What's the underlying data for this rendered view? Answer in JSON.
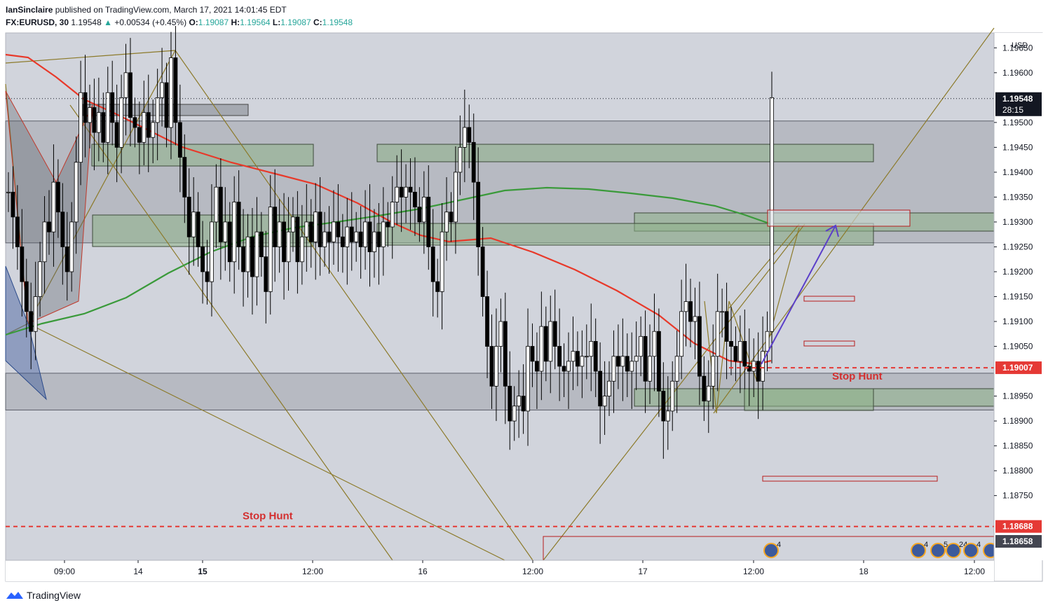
{
  "header": {
    "author": "IanSinclaire",
    "published_text": "published on TradingView.com, March 17, 2021 14:01:45 EDT",
    "symbol": "FX:EURUSD, 30",
    "last": "1.19548",
    "change": "+0.00534 (+0.45%)",
    "o_label": "O:",
    "o_value": "1.19087",
    "h_label": "H:",
    "h_value": "1.19564",
    "l_label": "L:",
    "l_value": "1.19087",
    "c_label": "C:",
    "c_value": "1.19548"
  },
  "footer": {
    "brand": "TradingView"
  },
  "colors": {
    "bull": "#ffffff",
    "bear": "#000000",
    "ema_red": "#e8392a",
    "ema_green": "#3a9a3a",
    "zone_grey": "#a9acb3",
    "zone_green": "#8fb38a",
    "pattern": "#8c7a2a",
    "stop": "#e53935",
    "arrow": "#5b3fc9"
  },
  "chart_data": {
    "type": "candlestick",
    "symbol": "FX:EURUSD",
    "timeframe": "30",
    "y_axis": {
      "currency": "USD",
      "range": [
        1.1862,
        1.1968
      ],
      "ticks": [
        "1.19650",
        "1.19600",
        "1.19500",
        "1.19450",
        "1.19400",
        "1.19350",
        "1.19300",
        "1.19250",
        "1.19200",
        "1.19150",
        "1.19100",
        "1.19050",
        "1.18950",
        "1.18900",
        "1.18850",
        "1.18800",
        "1.18750"
      ]
    },
    "x_axis": {
      "ticks": [
        {
          "label": "09:00",
          "bold": false
        },
        {
          "label": "14",
          "bold": false
        },
        {
          "label": "15",
          "bold": true
        },
        {
          "label": "12:00",
          "bold": false
        },
        {
          "label": "16",
          "bold": false
        },
        {
          "label": "12:00",
          "bold": false
        },
        {
          "label": "17",
          "bold": false
        },
        {
          "label": "12:00",
          "bold": false
        },
        {
          "label": "18",
          "bold": false
        },
        {
          "label": "12:00",
          "bold": false
        }
      ]
    },
    "price_labels": {
      "current": "1.19548",
      "countdown": "28:15",
      "stop_upper": "1.19007",
      "stop_lower": "1.18688",
      "bottom": "1.18658"
    },
    "annotations": [
      {
        "text": "Stop Hunt",
        "price": 1.19007
      },
      {
        "text": "Stop Hunt",
        "price": 1.18688
      }
    ],
    "event_badges": [
      "4",
      "4",
      "5",
      "24",
      "4"
    ],
    "grey_zones": [
      [
        1.19258,
        1.19503
      ],
      [
        1.18922,
        1.18996
      ]
    ],
    "green_zones": [
      [
        1.19444,
        1.19478
      ],
      [
        1.19268,
        1.19312
      ],
      [
        1.19297,
        1.19333
      ],
      [
        1.1893,
        1.18963
      ]
    ],
    "closes": [
      1.1936,
      1.1931,
      1.1925,
      1.1918,
      1.1912,
      1.1908,
      1.1915,
      1.1922,
      1.193,
      1.1928,
      1.1938,
      1.1932,
      1.1925,
      1.192,
      1.193,
      1.1942,
      1.1956,
      1.195,
      1.1953,
      1.1948,
      1.1952,
      1.1946,
      1.1956,
      1.195,
      1.1945,
      1.1955,
      1.196,
      1.1951,
      1.1949,
      1.1946,
      1.1952,
      1.1947,
      1.195,
      1.1955,
      1.1958,
      1.1949,
      1.1963,
      1.195,
      1.1943,
      1.1935,
      1.1927,
      1.1932,
      1.1925,
      1.192,
      1.1918,
      1.193,
      1.1937,
      1.1926,
      1.193,
      1.1922,
      1.1934,
      1.1925,
      1.192,
      1.1927,
      1.1919,
      1.1928,
      1.1923,
      1.1916,
      1.1933,
      1.1925,
      1.193,
      1.1922,
      1.1928,
      1.1931,
      1.1922,
      1.1927,
      1.193,
      1.1926,
      1.1932,
      1.1925,
      1.1928,
      1.1926,
      1.193,
      1.1927,
      1.1925,
      1.1929,
      1.1926,
      1.1928,
      1.1925,
      1.193,
      1.1924,
      1.1928,
      1.1925,
      1.193,
      1.1929,
      1.1934,
      1.1937,
      1.1935,
      1.1937,
      1.1936,
      1.1933,
      1.193,
      1.1935,
      1.1925,
      1.1918,
      1.1916,
      1.1928,
      1.1932,
      1.193,
      1.194,
      1.1945,
      1.1949,
      1.1946,
      1.1938,
      1.1925,
      1.1915,
      1.1905,
      1.1897,
      1.1905,
      1.191,
      1.1897,
      1.189,
      1.1893,
      1.1895,
      1.1892,
      1.1905,
      1.1902,
      1.19,
      1.1909,
      1.1902,
      1.191,
      1.1905,
      1.1901,
      1.19,
      1.1902,
      1.1904,
      1.1901,
      1.1903,
      1.1903,
      1.1906,
      1.19,
      1.1893,
      1.1895,
      1.1898,
      1.1903,
      1.1901,
      1.1903,
      1.19,
      1.1902,
      1.1903,
      1.1907,
      1.1898,
      1.1903,
      1.1908,
      1.1896,
      1.189,
      1.1892,
      1.1898,
      1.1903,
      1.1912,
      1.1914,
      1.191,
      1.1911,
      1.1899,
      1.1894,
      1.1897,
      1.1903,
      1.1912,
      1.1912,
      1.1906,
      1.1905,
      1.1902,
      1.1906,
      1.1901,
      1.19,
      1.1902,
      1.1898,
      1.1904,
      1.1908,
      1.1955
    ]
  }
}
